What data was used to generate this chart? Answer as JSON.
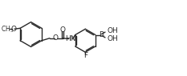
{
  "bg_color": "#ffffff",
  "line_color": "#2a2a2a",
  "line_width": 1.0,
  "font_size": 6.5,
  "fig_width": 2.33,
  "fig_height": 0.95,
  "xlim": [
    0,
    23.3
  ],
  "ylim": [
    0,
    9.5
  ]
}
